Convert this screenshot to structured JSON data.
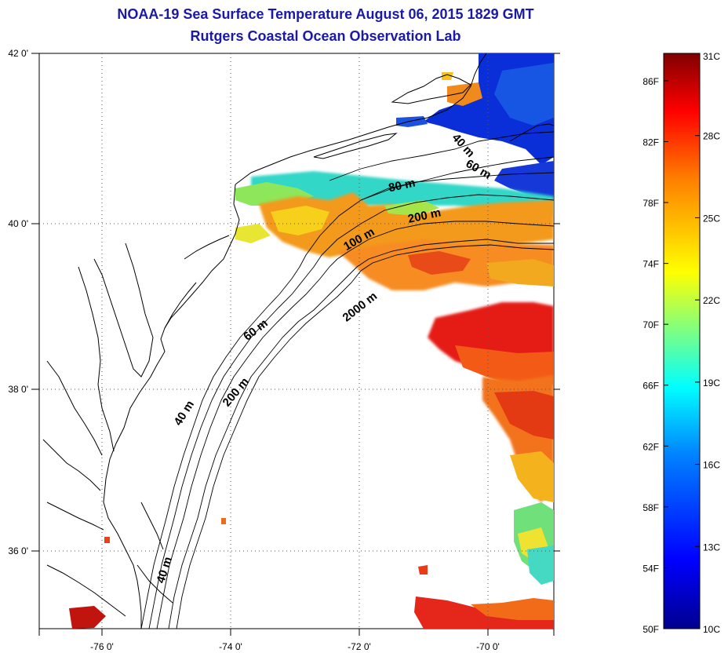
{
  "title": "NOAA-19 Sea Surface Temperature August 06, 2015 1829 GMT",
  "subtitle": "Rutgers Coastal Ocean Observation Lab",
  "map": {
    "lat_ticks": [
      {
        "value": 42,
        "label": "42 0'"
      },
      {
        "value": 40,
        "label": "40 0'"
      },
      {
        "value": 38,
        "label": "38 0'"
      },
      {
        "value": 36,
        "label": "36 0'"
      }
    ],
    "lon_ticks": [
      {
        "value": -76,
        "label": "-76 0'"
      },
      {
        "value": -74,
        "label": "-74 0'"
      },
      {
        "value": -72,
        "label": "-72 0'"
      },
      {
        "value": -70,
        "label": "-70 0'"
      }
    ],
    "lon_range": [
      -77,
      -69
    ],
    "lat_range": [
      35,
      42
    ],
    "isobath_labels": [
      {
        "text": "40 m",
        "lon": -70.45,
        "lat": 40.85,
        "angle": 48
      },
      {
        "text": "60 m",
        "lon": -70.2,
        "lat": 40.55,
        "angle": 30
      },
      {
        "text": "80 m",
        "lon": -71.35,
        "lat": 40.35,
        "angle": -12
      },
      {
        "text": "200 m",
        "lon": -71.0,
        "lat": 39.98,
        "angle": -12
      },
      {
        "text": "100 m",
        "lon": -72.0,
        "lat": 39.7,
        "angle": -30
      },
      {
        "text": "2000 m",
        "lon": -71.98,
        "lat": 38.88,
        "angle": -38
      },
      {
        "text": "60 m",
        "lon": -73.6,
        "lat": 38.6,
        "angle": -38
      },
      {
        "text": "200 m",
        "lon": -73.9,
        "lat": 37.85,
        "angle": -50
      },
      {
        "text": "40 m",
        "lon": -74.7,
        "lat": 37.6,
        "angle": -58
      },
      {
        "text": "40 m",
        "lon": -75.0,
        "lat": 35.7,
        "angle": -72
      }
    ]
  },
  "colorbar": {
    "fahrenheit": [
      "86F",
      "82F",
      "78F",
      "74F",
      "70F",
      "66F",
      "62F",
      "58F",
      "54F",
      "50F"
    ],
    "celsius": [
      "31C",
      "28C",
      "25C",
      "22C",
      "19C",
      "16C",
      "13C",
      "10C"
    ],
    "fahrenheit_values": [
      86,
      82,
      78,
      74,
      70,
      66,
      62,
      58,
      54,
      50
    ],
    "celsius_values": [
      31,
      28,
      25,
      22,
      19,
      16,
      13,
      10
    ],
    "range_c": [
      10,
      31
    ],
    "colors": [
      "#00008f",
      "#0000ff",
      "#0080ff",
      "#00ffff",
      "#80ff80",
      "#ffff00",
      "#ff8000",
      "#ff0000",
      "#800000"
    ]
  }
}
